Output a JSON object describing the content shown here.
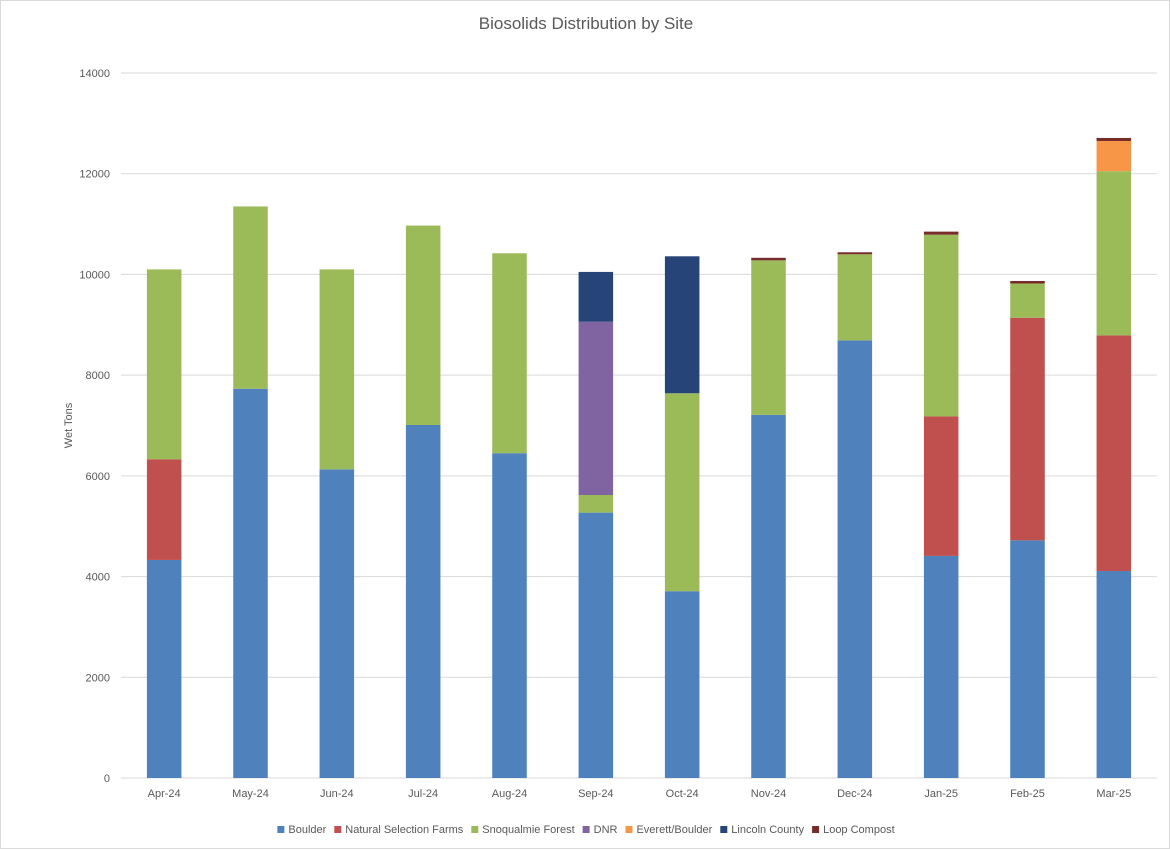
{
  "chart_data": {
    "type": "bar",
    "stacked": true,
    "title": "Biosolids Distribution by Site",
    "xlabel": "",
    "ylabel": "Wet Tons",
    "ylim": [
      0,
      14000
    ],
    "yticks": [
      0,
      2000,
      4000,
      6000,
      8000,
      10000,
      12000,
      14000
    ],
    "grid": true,
    "legend_position": "bottom",
    "categories": [
      "Apr-24",
      "May-24",
      "Jun-24",
      "Jul-24",
      "Aug-24",
      "Sep-24",
      "Oct-24",
      "Nov-24",
      "Dec-24",
      "Jan-25",
      "Feb-25",
      "Mar-25"
    ],
    "series": [
      {
        "name": "Boulder",
        "color": "#4f81bd",
        "values": [
          4330,
          7730,
          6130,
          7010,
          6450,
          5270,
          3710,
          7210,
          8690,
          4410,
          4720,
          4110
        ]
      },
      {
        "name": "Natural Selection Farms",
        "color": "#c0504d",
        "values": [
          2000,
          0,
          0,
          0,
          0,
          0,
          0,
          0,
          0,
          2770,
          4420,
          4680
        ]
      },
      {
        "name": "Snoqualmie Forest",
        "color": "#9bbb59",
        "values": [
          3770,
          3620,
          3970,
          3960,
          3970,
          350,
          3930,
          3070,
          1710,
          3610,
          680,
          3260
        ]
      },
      {
        "name": "DNR",
        "color": "#8064a2",
        "values": [
          0,
          0,
          0,
          0,
          0,
          3440,
          0,
          0,
          0,
          0,
          0,
          0
        ]
      },
      {
        "name": "Everett/Boulder",
        "color": "#f79646",
        "values": [
          0,
          0,
          0,
          0,
          0,
          0,
          0,
          0,
          0,
          0,
          0,
          600
        ]
      },
      {
        "name": "Lincoln County",
        "color": "#264478",
        "values": [
          0,
          0,
          0,
          0,
          0,
          990,
          2720,
          0,
          0,
          0,
          0,
          0
        ]
      },
      {
        "name": "Loop Compost",
        "color": "#772c2a",
        "values": [
          0,
          0,
          0,
          0,
          0,
          0,
          0,
          50,
          40,
          60,
          50,
          60
        ]
      }
    ]
  }
}
